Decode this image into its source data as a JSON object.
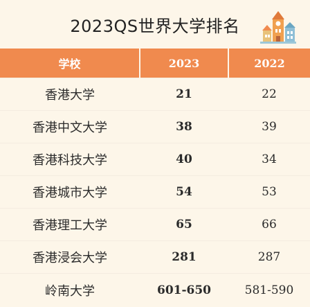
{
  "title": "2023QS世界大学排名",
  "table": {
    "headers": [
      "学校",
      "2023",
      "2022"
    ],
    "rows": [
      {
        "school": "香港大学",
        "y2023": "21",
        "y2022": "22"
      },
      {
        "school": "香港中文大学",
        "y2023": "38",
        "y2022": "39"
      },
      {
        "school": "香港科技大学",
        "y2023": "40",
        "y2022": "34"
      },
      {
        "school": "香港城市大学",
        "y2023": "54",
        "y2022": "53"
      },
      {
        "school": "香港理工大学",
        "y2023": "65",
        "y2022": "66"
      },
      {
        "school": "香港浸会大学",
        "y2023": "281",
        "y2022": "287"
      },
      {
        "school": "岭南大学",
        "y2023": "601-650",
        "y2022": "581-590"
      }
    ]
  },
  "colors": {
    "header_bg": "#f08a4e",
    "header_text": "#ffffff",
    "page_bg": "#fdf6e9"
  },
  "icons": {
    "logo": "building-tower-icon"
  }
}
